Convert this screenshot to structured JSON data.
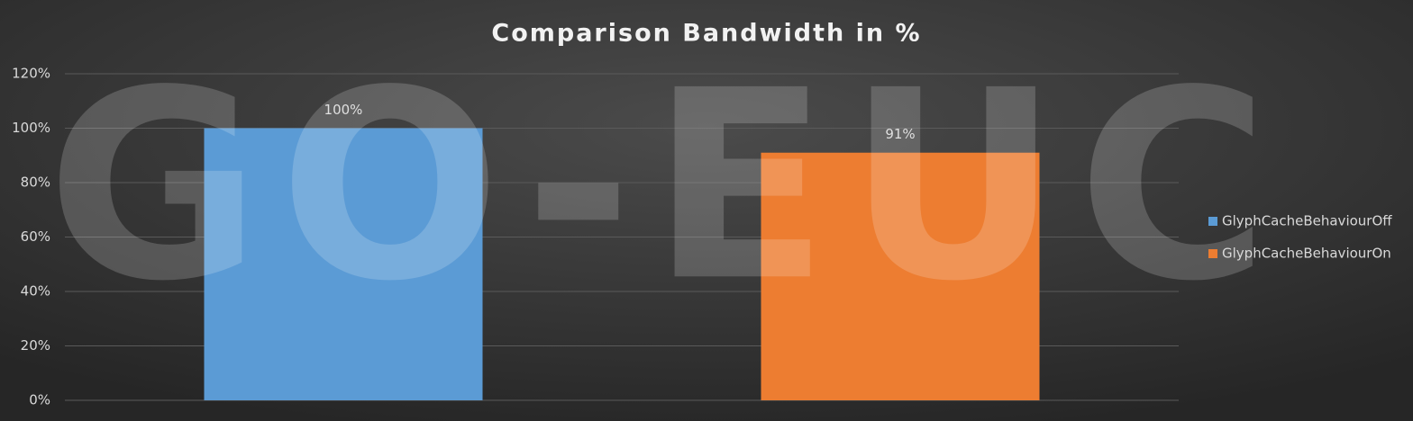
{
  "chart_data": {
    "type": "bar",
    "title": "Comparison Bandwidth in %",
    "watermark": "GO-EUC",
    "categories": [
      null
    ],
    "series": [
      {
        "name": "GlyphCacheBehaviourOff",
        "color": "#5b9bd5",
        "values": [
          100
        ],
        "value_labels": [
          "100%"
        ]
      },
      {
        "name": "GlyphCacheBehaviourOn",
        "color": "#ed7d31",
        "values": [
          91
        ],
        "value_labels": [
          "91%"
        ]
      }
    ],
    "ylim": [
      0,
      120
    ],
    "yticks": [
      {
        "value": 0,
        "label": "0%"
      },
      {
        "value": 20,
        "label": "20%"
      },
      {
        "value": 40,
        "label": "40%"
      },
      {
        "value": 60,
        "label": "60%"
      },
      {
        "value": 80,
        "label": "80%"
      },
      {
        "value": 100,
        "label": "100%"
      },
      {
        "value": 120,
        "label": "120%"
      }
    ],
    "grid": true,
    "legend": "right"
  }
}
